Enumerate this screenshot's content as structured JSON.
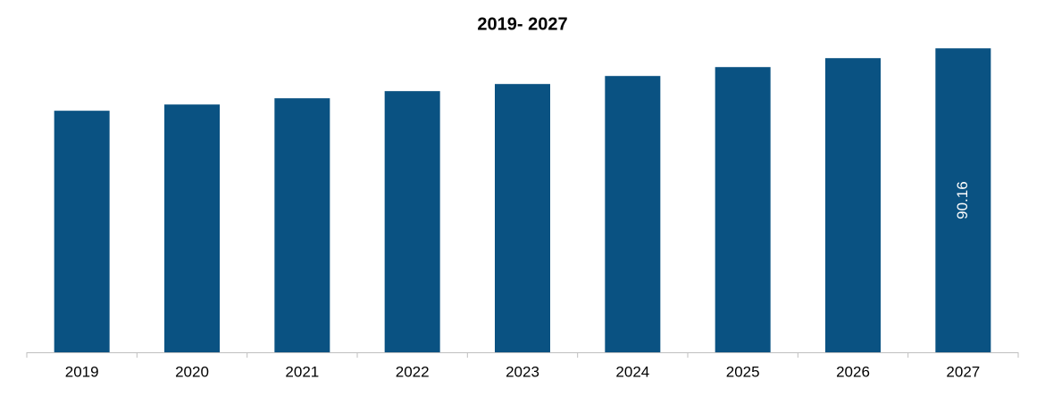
{
  "chart_data": {
    "type": "bar",
    "title": "2019- 2027",
    "categories": [
      "2019",
      "2020",
      "2021",
      "2022",
      "2023",
      "2024",
      "2025",
      "2026",
      "2027"
    ],
    "values": [
      71.65,
      73.5,
      75.35,
      77.47,
      79.58,
      81.96,
      84.6,
      87.25,
      90.16
    ],
    "color": "#0a5282",
    "ylim": [
      0,
      100
    ]
  }
}
